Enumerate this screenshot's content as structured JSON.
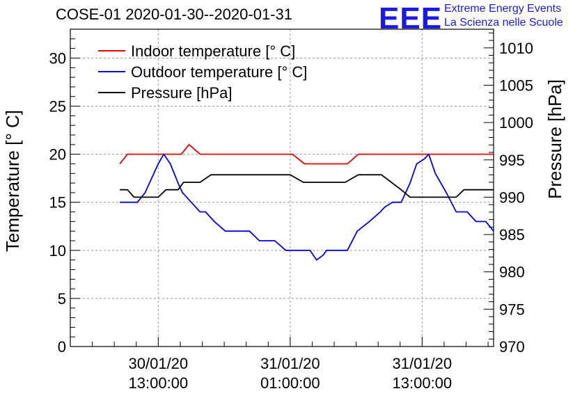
{
  "header": {
    "title": "COSE-01 2020-01-30--2020-01-31",
    "logo_text": "EEE",
    "logo_line1": "Extreme Energy Events",
    "logo_line2": "La Scienza nelle Scuole"
  },
  "colors": {
    "indoor": "#e60000",
    "outdoor": "#0000e6",
    "pressure": "#000000",
    "logo": "#1a1ae6"
  },
  "chart_data": {
    "type": "line",
    "grid": true,
    "legend_position": "top-left",
    "x_unit": "hours since 2020-01-30 00:00",
    "x_range": [
      5,
      43.5
    ],
    "x_ticks": [
      {
        "x": 13,
        "line1": "30/01/20",
        "line2": "13:00:00"
      },
      {
        "x": 25,
        "line1": "31/01/20",
        "line2": "01:00:00"
      },
      {
        "x": 37,
        "line1": "31/01/20",
        "line2": "13:00:00"
      }
    ],
    "y_left": {
      "label": "Temperature [° C]",
      "range": [
        0,
        33
      ],
      "ticks": [
        0,
        5,
        10,
        15,
        20,
        25,
        30
      ]
    },
    "y_right": {
      "label": "Pressure [hPa]",
      "range": [
        970,
        1012.5
      ],
      "ticks": [
        970,
        975,
        980,
        985,
        990,
        995,
        1000,
        1005,
        1010
      ]
    },
    "series": [
      {
        "name": "Indoor temperature [° C]",
        "axis": "left",
        "color": "#e60000",
        "x": [
          9.5,
          10.2,
          12,
          14,
          15.1,
          15.8,
          16.8,
          25.2,
          26.3,
          30.2,
          31.2,
          43.5
        ],
        "y": [
          19,
          20,
          20,
          20,
          20,
          21,
          20,
          20,
          19,
          19,
          20,
          20
        ]
      },
      {
        "name": "Outdoor temperature [° C]",
        "axis": "left",
        "color": "#0000e6",
        "x": [
          9.5,
          11.1,
          11.8,
          12.6,
          13.0,
          13.5,
          14.1,
          14.8,
          15.2,
          16.0,
          16.8,
          17.3,
          18.1,
          19.1,
          20.6,
          21.3,
          22.2,
          23.6,
          24.6,
          25.6,
          26.8,
          27.4,
          28.0,
          28.3,
          29.7,
          30.2,
          31.1,
          32.2,
          33.2,
          33.6,
          34.3,
          35.1,
          35.9,
          36.5,
          37.2,
          37.6,
          38.2,
          39.2,
          40.1,
          40.7,
          41.1,
          41.9,
          42.2,
          42.8,
          43.5
        ],
        "y": [
          15,
          15,
          16,
          18,
          19,
          20,
          19,
          17,
          16,
          15,
          14,
          14,
          13,
          12,
          12,
          12,
          11,
          11,
          10,
          10,
          10,
          9,
          9.5,
          10,
          10,
          10,
          12,
          13,
          14,
          14.5,
          15,
          15,
          17,
          19,
          19.5,
          20,
          18,
          16,
          14,
          14,
          14,
          13,
          13,
          13,
          12
        ]
      },
      {
        "name": "Pressure [hPa]",
        "axis": "right",
        "color": "#000000",
        "x": [
          9.5,
          10.2,
          10.8,
          12.3,
          13.0,
          13.7,
          14.8,
          15.3,
          16.0,
          16.8,
          17.8,
          25.0,
          26.2,
          29.2,
          30.0,
          31.2,
          33.3,
          34.2,
          35.1,
          35.9,
          38.6,
          40.1,
          40.8,
          43.5
        ],
        "y": [
          991,
          991,
          990,
          990,
          990,
          991,
          991,
          992,
          992,
          992,
          993,
          993,
          992,
          992,
          992,
          993,
          993,
          992,
          991,
          990,
          990,
          990,
          991,
          991
        ]
      }
    ]
  }
}
